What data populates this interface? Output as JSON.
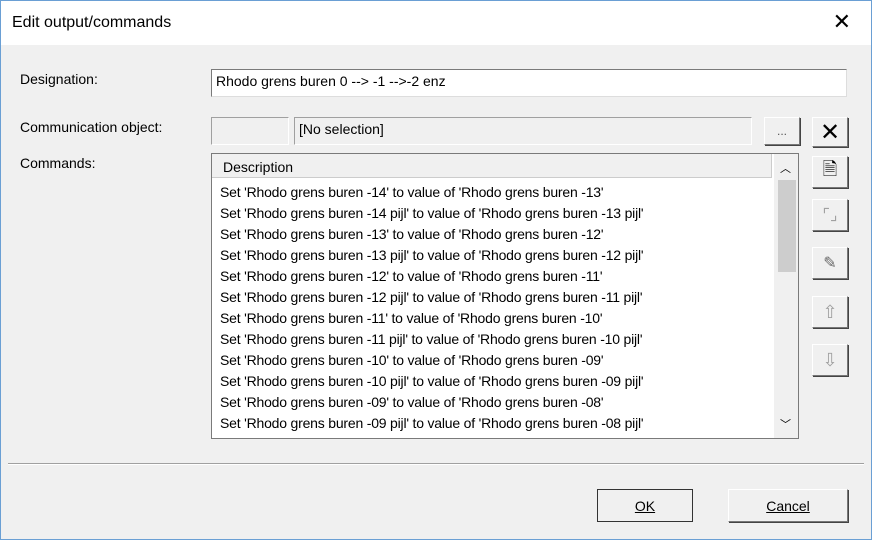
{
  "window": {
    "title": "Edit output/commands",
    "close_icon": "close-icon"
  },
  "designation": {
    "label": "Designation:",
    "value": "Rhodo grens buren 0 --> -1 -->-2 enz"
  },
  "communication_object": {
    "label": "Communication object:",
    "id_value": "",
    "name_value": "[No selection]",
    "browse_label": "..."
  },
  "commands": {
    "label": "Commands:",
    "column_header": "Description",
    "rows": [
      "Set 'Rhodo grens buren -14' to value of 'Rhodo grens buren -13'",
      "Set 'Rhodo grens buren -14 pijl' to value of 'Rhodo grens buren -13 pijl'",
      "Set 'Rhodo grens buren -13' to value of 'Rhodo grens buren -12'",
      "Set 'Rhodo grens buren -13 pijl' to value of 'Rhodo grens buren -12 pijl'",
      "Set 'Rhodo grens buren -12' to value of 'Rhodo grens buren -11'",
      "Set 'Rhodo grens buren -12 pijl' to value of 'Rhodo grens buren -11 pijl'",
      "Set 'Rhodo grens buren -11' to value of 'Rhodo grens buren -10'",
      "Set 'Rhodo grens buren -11 pijl' to value of 'Rhodo grens buren -10 pijl'",
      "Set 'Rhodo grens buren -10' to value of 'Rhodo grens buren -09'",
      "Set 'Rhodo grens buren -10 pijl' to value of 'Rhodo grens buren -09 pijl'",
      "Set 'Rhodo grens buren -09' to value of 'Rhodo grens buren -08'",
      "Set 'Rhodo grens buren -09 pijl' to value of 'Rhodo grens buren -08 pijl'"
    ]
  },
  "side_buttons": [
    "delete-icon",
    "new-document-icon",
    "rename-icon",
    "edit-document-icon",
    "arrow-up-icon",
    "arrow-down-icon"
  ],
  "footer": {
    "ok_label": "OK",
    "cancel_label": "Cancel"
  }
}
